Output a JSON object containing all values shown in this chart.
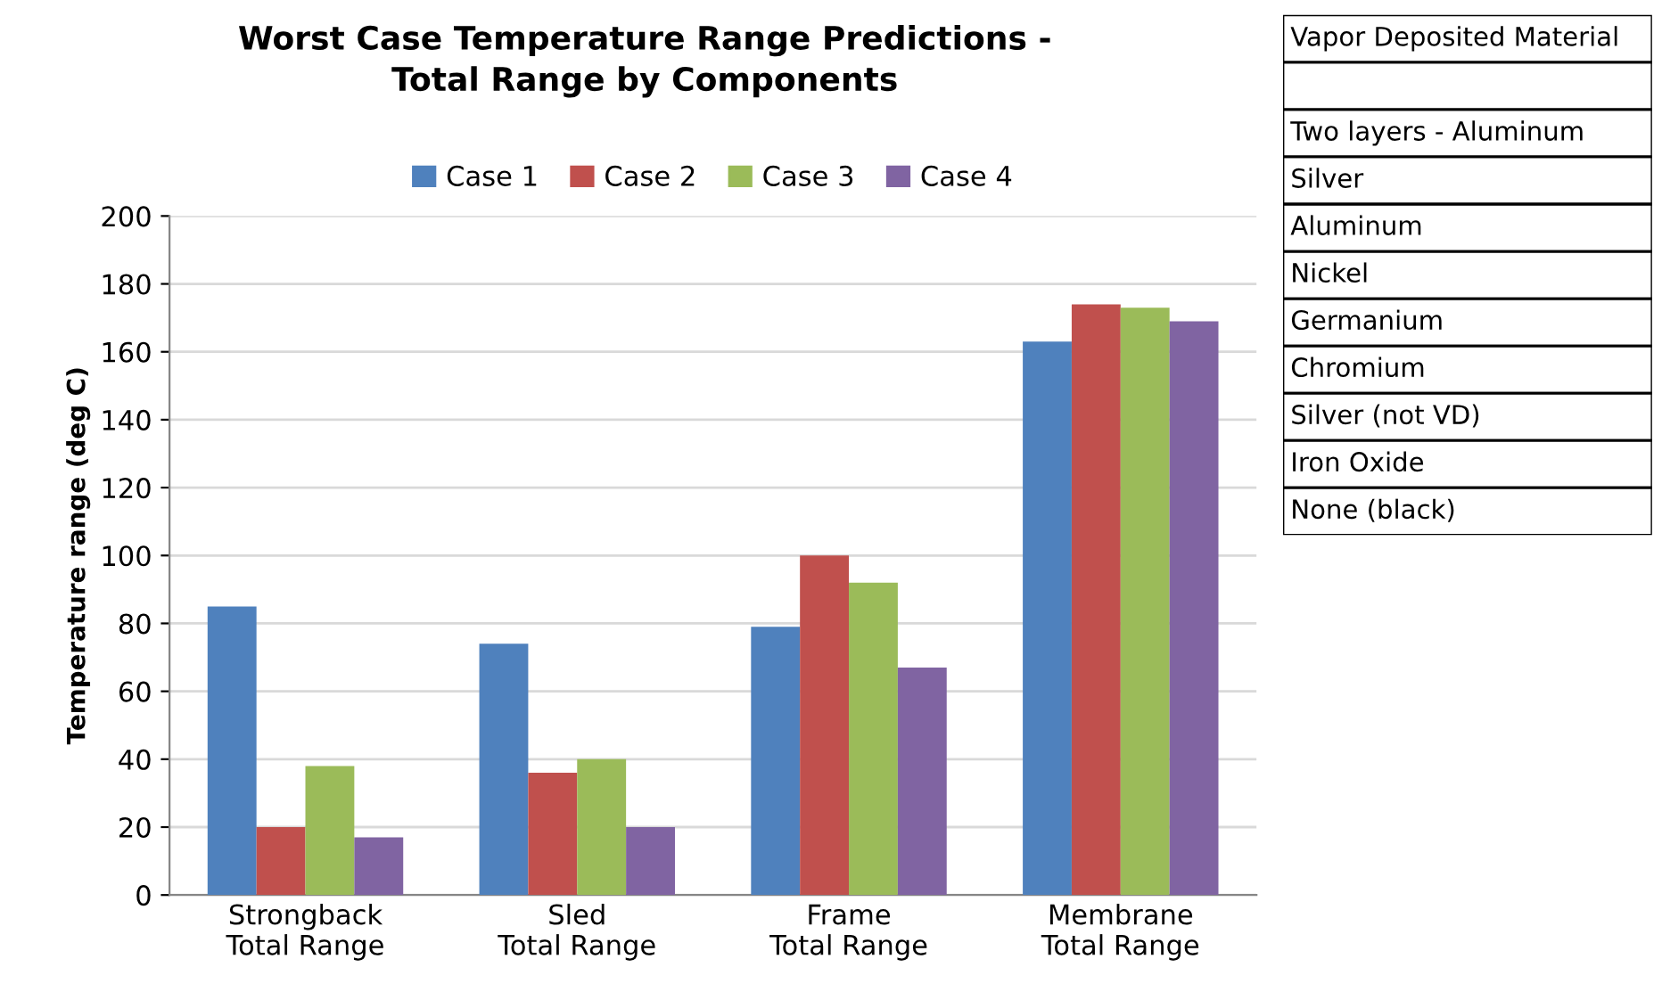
{
  "chart_data": [
    {
      "type": "bar",
      "title": "Worst Case Temperature Range Predictions -\nTotal Range by Components",
      "ylabel": "Temperature range (deg C)",
      "categories": [
        "Strongback\nTotal Range",
        "Sled\nTotal Range",
        "Frame\nTotal Range",
        "Membrane\nTotal Range"
      ],
      "series": [
        {
          "name": "Case 1",
          "color": "#4f81bd",
          "values": [
            85,
            74,
            79,
            163
          ]
        },
        {
          "name": "Case 2",
          "color": "#c0504d",
          "values": [
            20,
            36,
            100,
            174
          ]
        },
        {
          "name": "Case 3",
          "color": "#9bbb59",
          "values": [
            38,
            40,
            92,
            173
          ]
        },
        {
          "name": "Case 4",
          "color": "#8064a2",
          "values": [
            17,
            20,
            67,
            169
          ]
        }
      ],
      "ylim": [
        0,
        200
      ],
      "yticks": [
        0,
        20,
        40,
        60,
        80,
        100,
        120,
        140,
        160,
        180,
        200
      ],
      "grid": "y",
      "legend": "top"
    },
    {
      "type": "other",
      "title": "Vapor Deposited Material",
      "annotations": [
        "Two layers - Aluminum",
        "Silver",
        "Aluminum",
        "Nickel",
        "Germanium",
        "Chromium",
        "Silver (not VD)",
        "Iron Oxide",
        "None (black)"
      ]
    }
  ]
}
